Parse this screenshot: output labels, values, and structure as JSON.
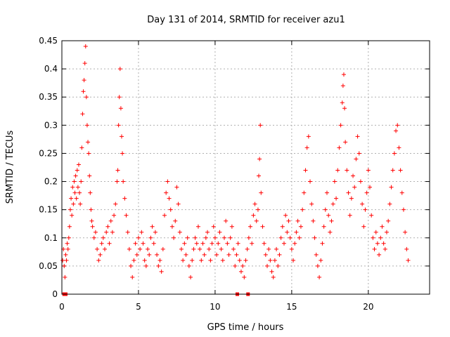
{
  "chart_data": {
    "type": "scatter",
    "title": "Day 131 of 2014, SRMTID for receiver azu1",
    "xlabel": "GPS time / hours",
    "ylabel": "SRMTID / TECUs",
    "xlim": [
      0,
      24
    ],
    "ylim": [
      0,
      0.45
    ],
    "xticks": [
      0,
      5,
      10,
      15,
      20
    ],
    "yticks": [
      0,
      0.05,
      0.1,
      0.15,
      0.2,
      0.25,
      0.3,
      0.35,
      0.4,
      0.45
    ],
    "xtick_labels": [
      "0",
      "5",
      "10",
      "15",
      "20"
    ],
    "ytick_labels": [
      "0",
      "0.05",
      "0.1",
      "0.15",
      "0.2",
      "0.25",
      "0.3",
      "0.35",
      "0.4",
      "0.45"
    ],
    "grid": true,
    "marker": "+",
    "color": "#ff0000",
    "series": [
      {
        "name": "SRMTID",
        "points": [
          [
            0.05,
            0.06
          ],
          [
            0.1,
            0.08
          ],
          [
            0.15,
            0.05
          ],
          [
            0.2,
            0.03
          ],
          [
            0.25,
            0.07
          ],
          [
            0.3,
            0.06
          ],
          [
            0.35,
            0.09
          ],
          [
            0.4,
            0.08
          ],
          [
            0.45,
            0.1
          ],
          [
            0.5,
            0.12
          ],
          [
            0.55,
            0.15
          ],
          [
            0.6,
            0.17
          ],
          [
            0.65,
            0.14
          ],
          [
            0.7,
            0.19
          ],
          [
            0.75,
            0.16
          ],
          [
            0.8,
            0.2
          ],
          [
            0.85,
            0.18
          ],
          [
            0.9,
            0.21
          ],
          [
            0.95,
            0.17
          ],
          [
            1.0,
            0.22
          ],
          [
            1.05,
            0.19
          ],
          [
            1.1,
            0.23
          ],
          [
            1.15,
            0.18
          ],
          [
            1.2,
            0.16
          ],
          [
            1.25,
            0.2
          ],
          [
            1.3,
            0.26
          ],
          [
            1.35,
            0.32
          ],
          [
            1.4,
            0.36
          ],
          [
            1.45,
            0.38
          ],
          [
            1.5,
            0.41
          ],
          [
            1.55,
            0.44
          ],
          [
            1.6,
            0.35
          ],
          [
            1.65,
            0.3
          ],
          [
            1.7,
            0.27
          ],
          [
            1.75,
            0.25
          ],
          [
            1.8,
            0.21
          ],
          [
            1.85,
            0.18
          ],
          [
            1.9,
            0.15
          ],
          [
            1.95,
            0.13
          ],
          [
            2.0,
            0.12
          ],
          [
            2.1,
            0.1
          ],
          [
            2.2,
            0.11
          ],
          [
            2.3,
            0.08
          ],
          [
            2.4,
            0.06
          ],
          [
            2.5,
            0.07
          ],
          [
            2.6,
            0.09
          ],
          [
            2.7,
            0.1
          ],
          [
            2.8,
            0.08
          ],
          [
            2.9,
            0.11
          ],
          [
            3.0,
            0.12
          ],
          [
            3.1,
            0.09
          ],
          [
            3.2,
            0.13
          ],
          [
            3.3,
            0.11
          ],
          [
            3.4,
            0.14
          ],
          [
            3.5,
            0.16
          ],
          [
            3.6,
            0.2
          ],
          [
            3.65,
            0.22
          ],
          [
            3.7,
            0.3
          ],
          [
            3.75,
            0.35
          ],
          [
            3.8,
            0.4
          ],
          [
            3.85,
            0.33
          ],
          [
            3.9,
            0.28
          ],
          [
            3.95,
            0.25
          ],
          [
            4.0,
            0.2
          ],
          [
            4.1,
            0.17
          ],
          [
            4.2,
            0.14
          ],
          [
            4.3,
            0.11
          ],
          [
            4.4,
            0.08
          ],
          [
            4.5,
            0.05
          ],
          [
            4.6,
            0.03
          ],
          [
            4.7,
            0.06
          ],
          [
            4.8,
            0.09
          ],
          [
            4.9,
            0.07
          ],
          [
            5.0,
            0.1
          ],
          [
            5.1,
            0.08
          ],
          [
            5.2,
            0.11
          ],
          [
            5.3,
            0.09
          ],
          [
            5.4,
            0.06
          ],
          [
            5.5,
            0.05
          ],
          [
            5.6,
            0.08
          ],
          [
            5.7,
            0.07
          ],
          [
            5.8,
            0.1
          ],
          [
            5.9,
            0.12
          ],
          [
            6.0,
            0.09
          ],
          [
            6.1,
            0.11
          ],
          [
            6.2,
            0.07
          ],
          [
            6.3,
            0.05
          ],
          [
            6.4,
            0.06
          ],
          [
            6.5,
            0.04
          ],
          [
            6.6,
            0.08
          ],
          [
            6.7,
            0.14
          ],
          [
            6.8,
            0.18
          ],
          [
            6.9,
            0.2
          ],
          [
            7.0,
            0.17
          ],
          [
            7.1,
            0.15
          ],
          [
            7.2,
            0.12
          ],
          [
            7.3,
            0.1
          ],
          [
            7.4,
            0.13
          ],
          [
            7.5,
            0.19
          ],
          [
            7.6,
            0.16
          ],
          [
            7.7,
            0.11
          ],
          [
            7.8,
            0.08
          ],
          [
            7.9,
            0.06
          ],
          [
            8.0,
            0.09
          ],
          [
            8.1,
            0.07
          ],
          [
            8.2,
            0.1
          ],
          [
            8.3,
            0.05
          ],
          [
            8.4,
            0.03
          ],
          [
            8.5,
            0.06
          ],
          [
            8.6,
            0.08
          ],
          [
            8.7,
            0.1
          ],
          [
            8.8,
            0.09
          ],
          [
            8.9,
            0.12
          ],
          [
            9.0,
            0.08
          ],
          [
            9.1,
            0.06
          ],
          [
            9.2,
            0.09
          ],
          [
            9.3,
            0.07
          ],
          [
            9.4,
            0.1
          ],
          [
            9.5,
            0.11
          ],
          [
            9.6,
            0.08
          ],
          [
            9.7,
            0.06
          ],
          [
            9.8,
            0.09
          ],
          [
            9.9,
            0.12
          ],
          [
            10.0,
            0.1
          ],
          [
            10.1,
            0.07
          ],
          [
            10.2,
            0.09
          ],
          [
            10.3,
            0.11
          ],
          [
            10.4,
            0.08
          ],
          [
            10.5,
            0.06
          ],
          [
            10.6,
            0.1
          ],
          [
            10.7,
            0.13
          ],
          [
            10.8,
            0.09
          ],
          [
            10.9,
            0.07
          ],
          [
            11.0,
            0.1
          ],
          [
            11.1,
            0.12
          ],
          [
            11.2,
            0.08
          ],
          [
            11.3,
            0.05
          ],
          [
            11.4,
            0.07
          ],
          [
            11.5,
            0.09
          ],
          [
            11.6,
            0.06
          ],
          [
            11.7,
            0.04
          ],
          [
            11.8,
            0.05
          ],
          [
            11.9,
            0.03
          ],
          [
            12.0,
            0.06
          ],
          [
            12.1,
            0.08
          ],
          [
            12.2,
            0.1
          ],
          [
            12.3,
            0.12
          ],
          [
            12.4,
            0.09
          ],
          [
            12.5,
            0.14
          ],
          [
            12.6,
            0.16
          ],
          [
            12.7,
            0.13
          ],
          [
            12.8,
            0.15
          ],
          [
            12.85,
            0.21
          ],
          [
            12.9,
            0.24
          ],
          [
            12.95,
            0.3
          ],
          [
            13.0,
            0.18
          ],
          [
            13.1,
            0.12
          ],
          [
            13.2,
            0.09
          ],
          [
            13.3,
            0.07
          ],
          [
            13.4,
            0.05
          ],
          [
            13.5,
            0.08
          ],
          [
            13.6,
            0.06
          ],
          [
            13.7,
            0.04
          ],
          [
            13.8,
            0.03
          ],
          [
            13.9,
            0.06
          ],
          [
            14.0,
            0.08
          ],
          [
            14.1,
            0.05
          ],
          [
            14.2,
            0.07
          ],
          [
            14.3,
            0.1
          ],
          [
            14.4,
            0.12
          ],
          [
            14.5,
            0.09
          ],
          [
            14.6,
            0.14
          ],
          [
            14.7,
            0.11
          ],
          [
            14.8,
            0.13
          ],
          [
            14.9,
            0.1
          ],
          [
            15.0,
            0.08
          ],
          [
            15.1,
            0.06
          ],
          [
            15.2,
            0.09
          ],
          [
            15.3,
            0.11
          ],
          [
            15.4,
            0.13
          ],
          [
            15.5,
            0.1
          ],
          [
            15.6,
            0.12
          ],
          [
            15.7,
            0.15
          ],
          [
            15.8,
            0.18
          ],
          [
            15.9,
            0.22
          ],
          [
            16.0,
            0.26
          ],
          [
            16.1,
            0.28
          ],
          [
            16.2,
            0.2
          ],
          [
            16.3,
            0.16
          ],
          [
            16.4,
            0.13
          ],
          [
            16.5,
            0.1
          ],
          [
            16.6,
            0.07
          ],
          [
            16.7,
            0.05
          ],
          [
            16.8,
            0.03
          ],
          [
            16.9,
            0.06
          ],
          [
            17.0,
            0.09
          ],
          [
            17.1,
            0.12
          ],
          [
            17.2,
            0.15
          ],
          [
            17.3,
            0.18
          ],
          [
            17.4,
            0.14
          ],
          [
            17.5,
            0.11
          ],
          [
            17.6,
            0.13
          ],
          [
            17.7,
            0.16
          ],
          [
            17.8,
            0.2
          ],
          [
            17.9,
            0.17
          ],
          [
            18.0,
            0.22
          ],
          [
            18.1,
            0.26
          ],
          [
            18.2,
            0.3
          ],
          [
            18.3,
            0.34
          ],
          [
            18.35,
            0.37
          ],
          [
            18.4,
            0.39
          ],
          [
            18.45,
            0.33
          ],
          [
            18.5,
            0.27
          ],
          [
            18.6,
            0.22
          ],
          [
            18.7,
            0.18
          ],
          [
            18.8,
            0.14
          ],
          [
            18.9,
            0.17
          ],
          [
            19.0,
            0.21
          ],
          [
            19.1,
            0.19
          ],
          [
            19.2,
            0.24
          ],
          [
            19.3,
            0.28
          ],
          [
            19.4,
            0.25
          ],
          [
            19.5,
            0.2
          ],
          [
            19.6,
            0.16
          ],
          [
            19.7,
            0.12
          ],
          [
            19.8,
            0.15
          ],
          [
            19.9,
            0.18
          ],
          [
            20.0,
            0.22
          ],
          [
            20.1,
            0.19
          ],
          [
            20.2,
            0.14
          ],
          [
            20.3,
            0.1
          ],
          [
            20.4,
            0.08
          ],
          [
            20.5,
            0.11
          ],
          [
            20.6,
            0.09
          ],
          [
            20.7,
            0.07
          ],
          [
            20.8,
            0.1
          ],
          [
            20.9,
            0.12
          ],
          [
            21.0,
            0.09
          ],
          [
            21.1,
            0.08
          ],
          [
            21.2,
            0.11
          ],
          [
            21.3,
            0.13
          ],
          [
            21.4,
            0.16
          ],
          [
            21.5,
            0.19
          ],
          [
            21.6,
            0.22
          ],
          [
            21.7,
            0.25
          ],
          [
            21.8,
            0.29
          ],
          [
            21.9,
            0.3
          ],
          [
            22.0,
            0.26
          ],
          [
            22.1,
            0.22
          ],
          [
            22.2,
            0.18
          ],
          [
            22.3,
            0.15
          ],
          [
            22.4,
            0.11
          ],
          [
            22.5,
            0.08
          ],
          [
            22.6,
            0.06
          ]
        ]
      }
    ],
    "bottom_markers_x": [
      0.15,
      0.25,
      11.45,
      12.15
    ]
  }
}
